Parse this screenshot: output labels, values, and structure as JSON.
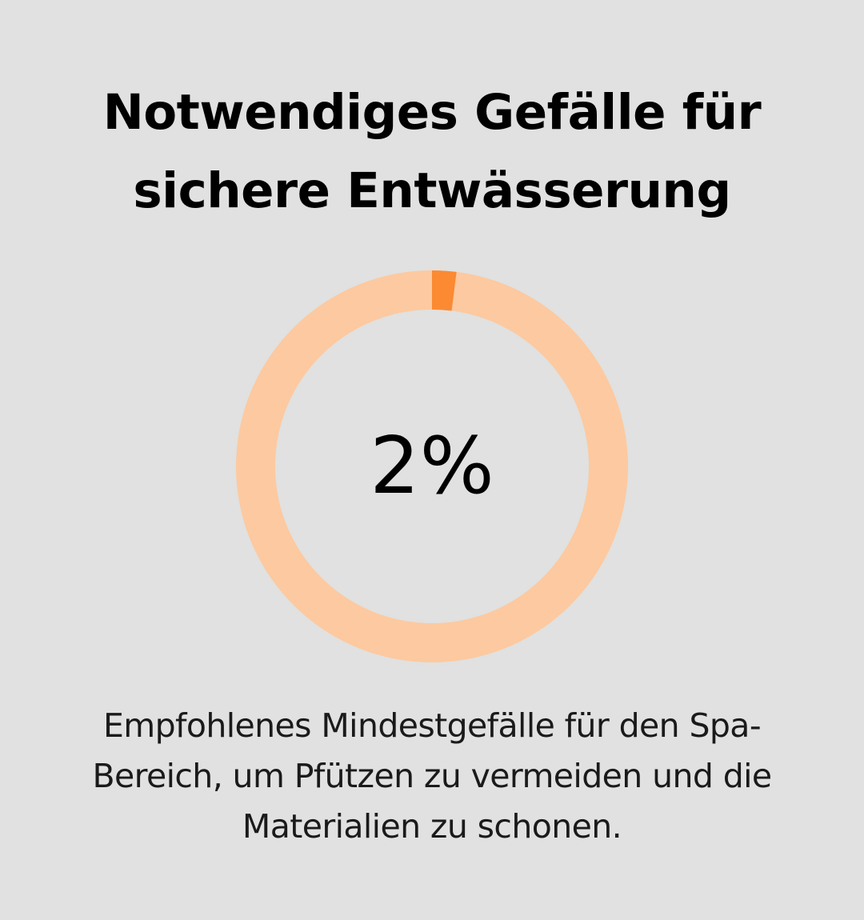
{
  "colors": {
    "background": "#e0e1e0",
    "track": "#fdc9a0",
    "accent": "#fb8a33",
    "text": "#000000"
  },
  "chart_data": {
    "type": "pie",
    "style": "donut",
    "title_lines": [
      "Notwendiges Gefälle für",
      "sichere Entwässerung"
    ],
    "value": 2,
    "max": 100,
    "center_label": "2%",
    "slices": [
      {
        "value": 2,
        "color": "#fb8a33"
      },
      {
        "value": 98,
        "color": "#fdc9a0"
      }
    ],
    "caption_lines": [
      "Empfohlenes Mindestgefälle für den Spa-",
      "Bereich, um Pfützen zu vermeiden und die",
      "Materialien zu schonen."
    ]
  }
}
